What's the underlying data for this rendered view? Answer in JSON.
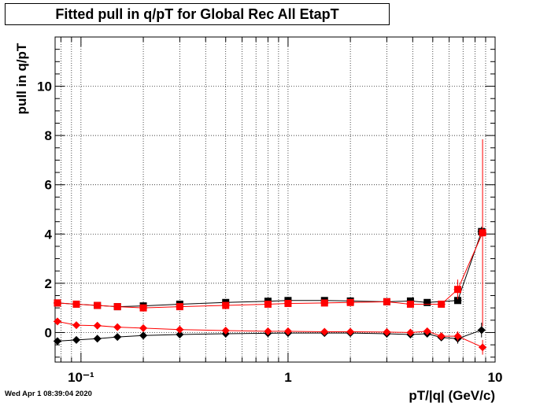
{
  "title": "Fitted pull in q/pT for Global Rec All EtapT",
  "timestamp": "Wed Apr  1 08:39:04 2020",
  "chart_data": {
    "type": "scatter",
    "title": "Fitted pull in q/pT for Global Rec All EtapT",
    "xlabel": "pT/|q| (GeV/c)",
    "ylabel": "pull in q/pT",
    "x_scale": "log",
    "xlim": [
      0.075,
      10
    ],
    "ylim": [
      -1.2,
      12
    ],
    "x_tick_labels": [
      "10⁻¹",
      "1",
      "10"
    ],
    "y_tick_labels": [
      "0",
      "2",
      "4",
      "6",
      "8",
      "10"
    ],
    "grid": true,
    "series": [
      {
        "marker": "square",
        "color": "#000000",
        "points": [
          {
            "x": 0.077,
            "y": 1.2,
            "yerr": 0.08
          },
          {
            "x": 0.095,
            "y": 1.15,
            "yerr": 0.06
          },
          {
            "x": 0.12,
            "y": 1.1,
            "yerr": 0.05
          },
          {
            "x": 0.15,
            "y": 1.05,
            "yerr": 0.05
          },
          {
            "x": 0.2,
            "y": 1.08,
            "yerr": 0.04
          },
          {
            "x": 0.3,
            "y": 1.15,
            "yerr": 0.03
          },
          {
            "x": 0.5,
            "y": 1.22,
            "yerr": 0.03
          },
          {
            "x": 0.8,
            "y": 1.27,
            "yerr": 0.03
          },
          {
            "x": 1.0,
            "y": 1.3,
            "yerr": 0.03
          },
          {
            "x": 1.5,
            "y": 1.3,
            "yerr": 0.03
          },
          {
            "x": 2.0,
            "y": 1.28,
            "yerr": 0.04
          },
          {
            "x": 3.0,
            "y": 1.25,
            "yerr": 0.05
          },
          {
            "x": 3.9,
            "y": 1.28,
            "yerr": 0.06
          },
          {
            "x": 4.7,
            "y": 1.22,
            "yerr": 0.07
          },
          {
            "x": 6.6,
            "y": 1.3,
            "yerr": 0.1
          },
          {
            "x": 8.6,
            "y": 4.1,
            "yerr": 0.2
          }
        ]
      },
      {
        "marker": "square",
        "color": "#ff0000",
        "points": [
          {
            "x": 0.077,
            "y": 1.2,
            "yerr": 0.08
          },
          {
            "x": 0.095,
            "y": 1.15,
            "yerr": 0.06
          },
          {
            "x": 0.12,
            "y": 1.1,
            "yerr": 0.05
          },
          {
            "x": 0.15,
            "y": 1.05,
            "yerr": 0.05
          },
          {
            "x": 0.2,
            "y": 1.0,
            "yerr": 0.04
          },
          {
            "x": 0.3,
            "y": 1.05,
            "yerr": 0.03
          },
          {
            "x": 0.5,
            "y": 1.1,
            "yerr": 0.03
          },
          {
            "x": 0.8,
            "y": 1.15,
            "yerr": 0.03
          },
          {
            "x": 1.0,
            "y": 1.18,
            "yerr": 0.03
          },
          {
            "x": 1.5,
            "y": 1.2,
            "yerr": 0.03
          },
          {
            "x": 2.0,
            "y": 1.22,
            "yerr": 0.04
          },
          {
            "x": 3.0,
            "y": 1.25,
            "yerr": 0.05
          },
          {
            "x": 3.9,
            "y": 1.15,
            "yerr": 0.06
          },
          {
            "x": 5.5,
            "y": 1.15,
            "yerr": 0.1
          },
          {
            "x": 6.6,
            "y": 1.75,
            "yerr": 0.4
          },
          {
            "x": 8.7,
            "y": 4.05,
            "yerr": 3.8
          }
        ]
      },
      {
        "marker": "diamond",
        "color": "#000000",
        "points": [
          {
            "x": 0.077,
            "y": -0.35,
            "yerr": 0.06
          },
          {
            "x": 0.095,
            "y": -0.3,
            "yerr": 0.05
          },
          {
            "x": 0.12,
            "y": -0.25,
            "yerr": 0.05
          },
          {
            "x": 0.15,
            "y": -0.18,
            "yerr": 0.04
          },
          {
            "x": 0.2,
            "y": -0.12,
            "yerr": 0.04
          },
          {
            "x": 0.3,
            "y": -0.08,
            "yerr": 0.03
          },
          {
            "x": 0.5,
            "y": -0.05,
            "yerr": 0.03
          },
          {
            "x": 0.8,
            "y": -0.03,
            "yerr": 0.03
          },
          {
            "x": 1.0,
            "y": -0.02,
            "yerr": 0.03
          },
          {
            "x": 1.5,
            "y": -0.02,
            "yerr": 0.03
          },
          {
            "x": 2.0,
            "y": -0.02,
            "yerr": 0.04
          },
          {
            "x": 3.0,
            "y": -0.05,
            "yerr": 0.05
          },
          {
            "x": 3.9,
            "y": -0.08,
            "yerr": 0.06
          },
          {
            "x": 4.7,
            "y": -0.05,
            "yerr": 0.07
          },
          {
            "x": 5.5,
            "y": -0.2,
            "yerr": 0.1
          },
          {
            "x": 6.6,
            "y": -0.25,
            "yerr": 0.2
          },
          {
            "x": 8.6,
            "y": 0.1,
            "yerr": 0.3
          }
        ]
      },
      {
        "marker": "diamond",
        "color": "#ff0000",
        "points": [
          {
            "x": 0.077,
            "y": 0.45,
            "yerr": 0.06
          },
          {
            "x": 0.095,
            "y": 0.3,
            "yerr": 0.05
          },
          {
            "x": 0.12,
            "y": 0.28,
            "yerr": 0.05
          },
          {
            "x": 0.15,
            "y": 0.22,
            "yerr": 0.04
          },
          {
            "x": 0.2,
            "y": 0.18,
            "yerr": 0.04
          },
          {
            "x": 0.3,
            "y": 0.12,
            "yerr": 0.03
          },
          {
            "x": 0.5,
            "y": 0.08,
            "yerr": 0.03
          },
          {
            "x": 0.8,
            "y": 0.05,
            "yerr": 0.03
          },
          {
            "x": 1.0,
            "y": 0.05,
            "yerr": 0.03
          },
          {
            "x": 1.5,
            "y": 0.03,
            "yerr": 0.03
          },
          {
            "x": 2.0,
            "y": 0.03,
            "yerr": 0.04
          },
          {
            "x": 3.0,
            "y": 0.02,
            "yerr": 0.05
          },
          {
            "x": 3.9,
            "y": 0.0,
            "yerr": 0.06
          },
          {
            "x": 4.7,
            "y": 0.05,
            "yerr": 0.07
          },
          {
            "x": 5.5,
            "y": -0.15,
            "yerr": 0.1
          },
          {
            "x": 6.6,
            "y": -0.15,
            "yerr": 0.2
          },
          {
            "x": 8.7,
            "y": -0.6,
            "yerr": 0.3
          }
        ]
      }
    ]
  }
}
